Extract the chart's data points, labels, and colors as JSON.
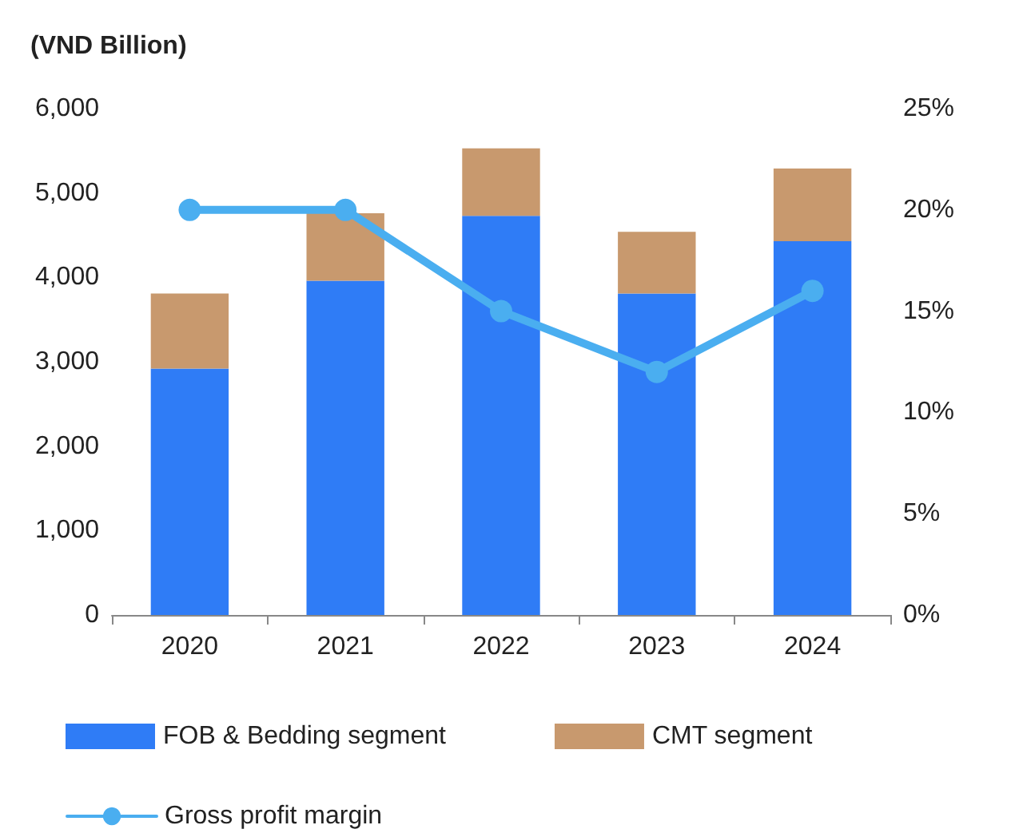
{
  "chart_data": {
    "type": "bar",
    "ylabel": "(VND Billion)",
    "categories": [
      "2020",
      "2021",
      "2022",
      "2023",
      "2024"
    ],
    "stacked": true,
    "series": [
      {
        "name": "FOB & Bedding segment",
        "color": "#2f7cf6",
        "values": [
          2920,
          3960,
          4730,
          3810,
          4430
        ]
      },
      {
        "name": "CMT segment",
        "color": "#c8996e",
        "values": [
          890,
          800,
          800,
          730,
          860
        ]
      },
      {
        "name": "Gross profit margin",
        "type": "line",
        "axis": "y2",
        "color": "#4aaef0",
        "marker": "circle",
        "values": [
          20,
          20,
          15,
          12,
          16
        ]
      }
    ],
    "ylim": [
      0,
      6000
    ],
    "yticks": [
      {
        "value": 0,
        "label": "0"
      },
      {
        "value": 1000,
        "label": "1,000"
      },
      {
        "value": 2000,
        "label": "2,000"
      },
      {
        "value": 3000,
        "label": "3,000"
      },
      {
        "value": 4000,
        "label": "4,000"
      },
      {
        "value": 5000,
        "label": "5,000"
      },
      {
        "value": 6000,
        "label": "6,000"
      }
    ],
    "y2lim": [
      0,
      25
    ],
    "y2ticks": [
      {
        "value": 0,
        "label": "0%"
      },
      {
        "value": 5,
        "label": "5%"
      },
      {
        "value": 10,
        "label": "10%"
      },
      {
        "value": 15,
        "label": "15%"
      },
      {
        "value": 20,
        "label": "20%"
      },
      {
        "value": 25,
        "label": "25%"
      }
    ],
    "grid": false,
    "legend": "bottom"
  }
}
